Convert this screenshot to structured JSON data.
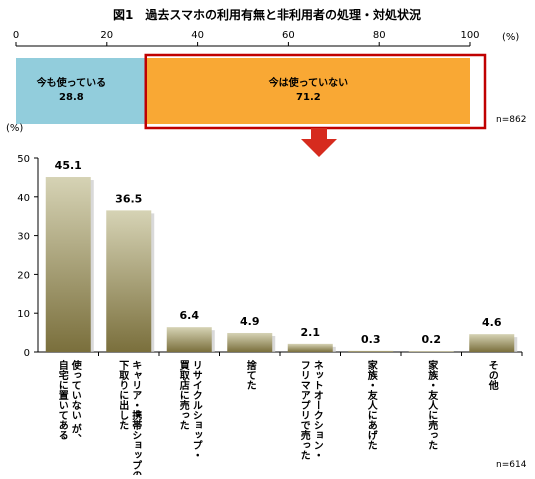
{
  "title": "図1　過去スマホの利用有無と非利用者の処理・対処状況",
  "colors": {
    "still_using": "#92cddc",
    "not_using": "#f9a834",
    "highlight_border": "#c00000",
    "arrow": "#d62b1e",
    "bar_top": "#d6d3b5",
    "bar_bottom": "#7a6f3c"
  },
  "chart_data": [
    {
      "type": "bar",
      "orientation": "horizontal-stacked",
      "axis_unit": "(%)",
      "xlim": [
        0,
        100
      ],
      "x_ticks": [
        "0",
        "20",
        "40",
        "60",
        "80",
        "100"
      ],
      "segments": [
        {
          "name": "今も使っている",
          "value": 28.8,
          "value_label": "28.8"
        },
        {
          "name": "今は使っていない",
          "value": 71.2,
          "value_label": "71.2"
        }
      ],
      "n_label": "n=862"
    },
    {
      "type": "bar",
      "axis_unit": "(%)",
      "ylim": [
        0,
        50
      ],
      "y_ticks": [
        "0",
        "10",
        "20",
        "30",
        "40",
        "50"
      ],
      "categories": [
        [
          "使っていない が、",
          "自宅に置いてある"
        ],
        [
          "キャリア・携帯ショップの",
          "下取りに出した"
        ],
        [
          "リサイクルショップ・",
          "買取店に売った"
        ],
        [
          "捨てた"
        ],
        [
          "ネットオークション・",
          "フリマアプリで売った"
        ],
        [
          "家族・友人にあげた"
        ],
        [
          "家族・友人に売った"
        ],
        [
          "その他"
        ]
      ],
      "values": [
        45.1,
        36.5,
        6.4,
        4.9,
        2.1,
        0.3,
        0.2,
        4.6
      ],
      "value_labels": [
        "45.1",
        "36.5",
        "6.4",
        "4.9",
        "2.1",
        "0.3",
        "0.2",
        "4.6"
      ],
      "n_label": "n=614"
    }
  ]
}
